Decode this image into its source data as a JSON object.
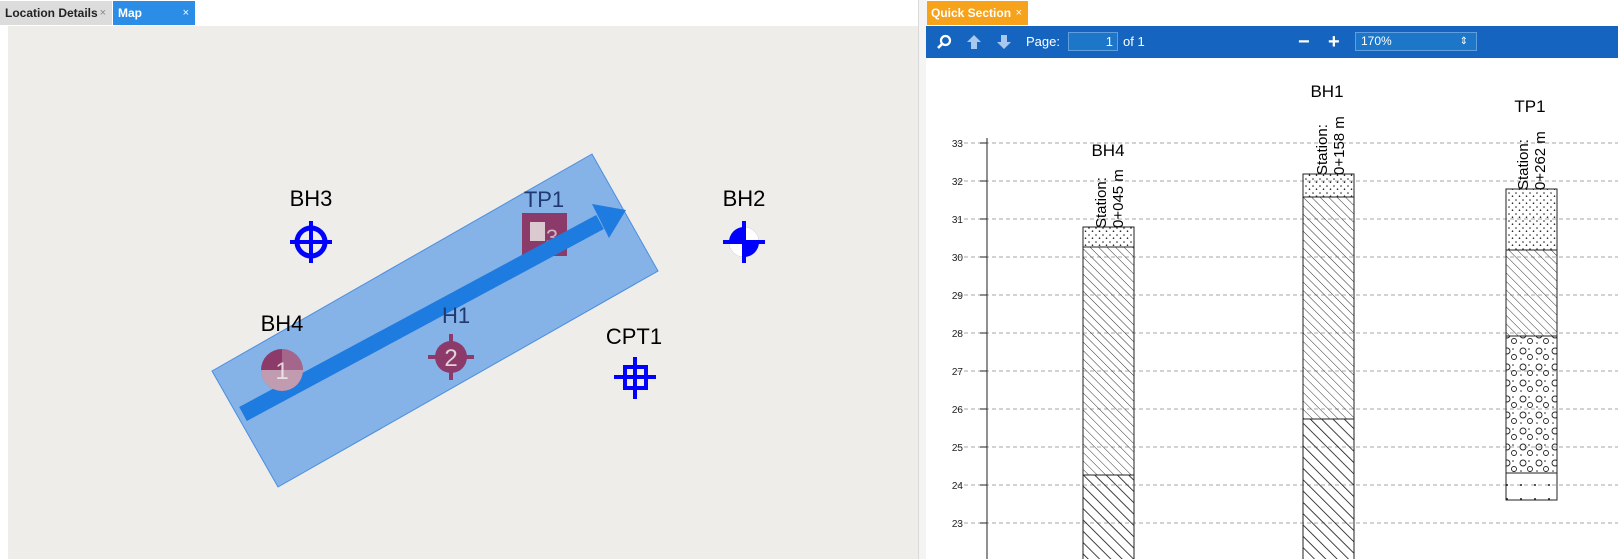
{
  "left_tabs": [
    {
      "label": "Location Details",
      "close": "×",
      "active": false
    },
    {
      "label": "Map",
      "close": "×",
      "active": true
    }
  ],
  "right_tabs": [
    {
      "label": "Quick Section",
      "close": "×",
      "active": true
    }
  ],
  "map": {
    "labels": {
      "bh3": "BH3",
      "tp1": "TP1",
      "bh2": "BH2",
      "bh4": "BH4",
      "bh1": "H1",
      "cpt1": "CPT1"
    },
    "colors": {
      "background": "#efedea",
      "selection": "#5b9be6",
      "arrow": "#1e7be0",
      "marker_blue": "#0000ff",
      "marker_purple": "#8b3a6a"
    },
    "numbers": {
      "bh4": "1",
      "bh1": "2",
      "tp1": "3"
    }
  },
  "toolbar": {
    "search_icon": "search-icon",
    "page_label": "Page:",
    "page_value": "1",
    "page_of": "of 1",
    "zoom_out": "−",
    "zoom_in": "+",
    "zoom_value": "170%",
    "zoom_arrow": "⇕"
  },
  "section": {
    "y_ticks": [
      "33",
      "32",
      "31",
      "30",
      "29",
      "28",
      "27",
      "26",
      "25",
      "24",
      "23"
    ],
    "logs": [
      {
        "name": "BH4",
        "station_label": "Station:",
        "station_value": "0+045 m"
      },
      {
        "name": "BH1",
        "station_label": "Station:",
        "station_value": "0+158 m"
      },
      {
        "name": "TP1",
        "station_label": "Station:",
        "station_value": "0+262 m"
      }
    ]
  }
}
